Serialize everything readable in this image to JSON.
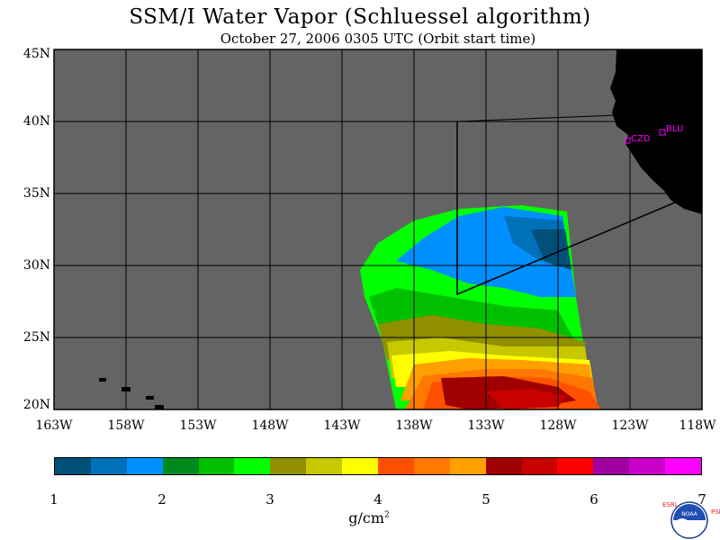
{
  "title": "SSM/I Water Vapor (Schluessel algorithm)",
  "subtitle": "October 27, 2006  0305 UTC  (Orbit start time)",
  "map": {
    "lat_ticks": [
      "45N",
      "40N",
      "35N",
      "30N",
      "25N",
      "20N"
    ],
    "lon_ticks": [
      "163W",
      "158W",
      "153W",
      "148W",
      "143W",
      "138W",
      "133W",
      "128W",
      "123W",
      "118W"
    ],
    "stations": [
      {
        "label": "CZD",
        "color": "#ff00ff"
      },
      {
        "label": "BLU",
        "color": "#ff00ff"
      }
    ],
    "background_color": "#646464",
    "land_color": "#000000"
  },
  "colorbar": {
    "colors": [
      "#00507a",
      "#0070b8",
      "#0090ff",
      "#008a1e",
      "#00c000",
      "#00ff00",
      "#909000",
      "#c8c800",
      "#ffff00",
      "#ff5000",
      "#ff7800",
      "#ffa000",
      "#a00000",
      "#c80000",
      "#ff0000",
      "#a000a0",
      "#c800c8",
      "#ff00ff"
    ],
    "labels": [
      "1",
      "2",
      "3",
      "4",
      "5",
      "6",
      "7"
    ],
    "unit": "g/cm",
    "unit_sup": "2"
  },
  "logo": {
    "left_letters": "ESRL",
    "right_letters": "PSD",
    "text": "NOAA"
  }
}
